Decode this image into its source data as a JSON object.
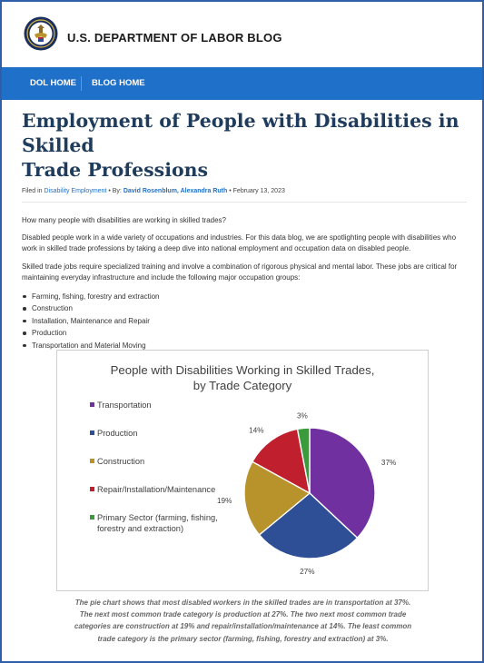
{
  "site": {
    "title": "U.S. DEPARTMENT OF LABOR BLOG"
  },
  "nav": {
    "items": [
      "DOL HOME",
      "BLOG HOME"
    ]
  },
  "article": {
    "title_line1": "Employment of People with Disabilities in Skilled",
    "title_line2": "Trade Professions",
    "meta": {
      "filed_in": "Filed in",
      "category": "Disability Employment",
      "by": "• By:",
      "authors": "David Rosenblum, Alexandra Ruth",
      "date": "• February 13, 2023"
    },
    "question": "How many people with disabilities are working in skilled trades?",
    "para1_line1": "Disabled people work in a wide variety of occupations and industries. For this data blog, we are spotlighting people with disabilities who",
    "para1_line2": "work in skilled trade professions by taking a deep dive into national employment and occupation data on disabled people.",
    "para2_line1": "Skilled trade jobs require specialized training and involve a combination of rigorous physical and mental labor. These jobs are critical for",
    "para2_line2": "maintaining everyday infrastructure and include the following major occupation groups:",
    "bullets": [
      "Farming, fishing, forestry and extraction",
      "Construction",
      "Installation, Maintenance and Repair",
      "Production",
      "Transportation and Material Moving"
    ],
    "caption_lines": [
      "The pie chart shows that most disabled workers in the skilled trades are in transportation at 37%.",
      "The next most common trade category is production at 27%. The two next most common trade",
      "categories are construction at 19% and repair/installation/maintenance at 14%. The least  common",
      "trade category is the primary sector (farming, fishing, forestry and extraction) at 3%."
    ]
  },
  "chart_data": {
    "type": "pie",
    "title_lines": [
      "People with Disabilities Working in Skilled Trades,",
      "by Trade Category"
    ],
    "legend_position": "left",
    "slices": [
      {
        "label": "Transportation",
        "value": 37,
        "display": "37%",
        "color": "#7030a0"
      },
      {
        "label": "Production",
        "value": 27,
        "display": "27%",
        "color": "#2e4f95"
      },
      {
        "label": "Construction",
        "value": 19,
        "display": "19%",
        "color": "#b8922a"
      },
      {
        "label": "Repair/Installation/Maintenance",
        "value": 14,
        "display": "14%",
        "color": "#c0202e"
      },
      {
        "label": "Primary Sector (farming, fishing, forestry and extraction)",
        "value": 3,
        "display": "3%",
        "color": "#3b9a3b"
      }
    ],
    "legend_lines": [
      [
        "Transportation"
      ],
      [
        "Production"
      ],
      [
        "Construction"
      ],
      [
        "Repair/Installation/Maintenance"
      ],
      [
        "Primary Sector (farming, fishing,",
        "forestry and extraction)"
      ]
    ]
  }
}
